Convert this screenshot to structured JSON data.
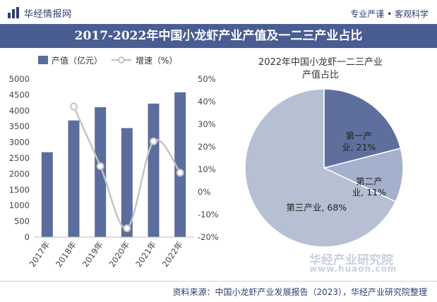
{
  "header": {
    "logo_text": "华经情报网",
    "slogan": "专业严谨 • 客观科学",
    "title": "2017-2022年中国小龙虾产业产值及一二三产业占比",
    "logo_icon": "chart-logo-icon"
  },
  "footer": {
    "source": "资料来源：中国小龙虾产业发展报告（2023），华经产业研究院整理"
  },
  "watermark": {
    "text_cn": "华经产业研究院",
    "url": "www.huaon.com"
  },
  "colors": {
    "title_band": "#4a5d92",
    "bar": "#5b6d9c",
    "line": "#c4c4c4",
    "pie_primary": "#b7bfd3",
    "pie_secondary": "#a4b0cc",
    "pie_tertiary": "#5f6f9d"
  },
  "chart_data": [
    {
      "type": "bar",
      "legend": {
        "position": "top-left",
        "items": [
          "产值（亿元）",
          "增速（%）"
        ]
      },
      "categories": [
        "2017年",
        "2018年",
        "2019年",
        "2020年",
        "2021年",
        "2022年"
      ],
      "series": [
        {
          "name": "产值（亿元）",
          "type": "bar",
          "axis": "left",
          "values": [
            2685,
            3690,
            4110,
            3448,
            4222,
            4580
          ]
        },
        {
          "name": "增速（%）",
          "type": "line",
          "axis": "right",
          "values": [
            null,
            37.8,
            11.4,
            -16.1,
            22.4,
            8.5
          ]
        }
      ],
      "y_left": {
        "ylim": [
          0,
          5000
        ],
        "ticks": [
          "0",
          "500",
          "1000",
          "1500",
          "2000",
          "2500",
          "3000",
          "3500",
          "4000",
          "4500",
          "5000"
        ]
      },
      "y_right": {
        "ylim": [
          -20,
          50
        ],
        "ticks": [
          "-20%",
          "-10%",
          "0%",
          "10%",
          "20%",
          "30%",
          "40%",
          "50%"
        ]
      },
      "grid": false
    },
    {
      "type": "pie",
      "title": "2022年中国小龙虾一二三产业产值占比",
      "slices": [
        {
          "label": "第一产业",
          "value": 21,
          "text": "第一产业, 21%"
        },
        {
          "label": "第二产业",
          "value": 11,
          "text": "第二产业, 11%"
        },
        {
          "label": "第三产业",
          "value": 68,
          "text": "第三产业, 68%"
        }
      ]
    }
  ]
}
